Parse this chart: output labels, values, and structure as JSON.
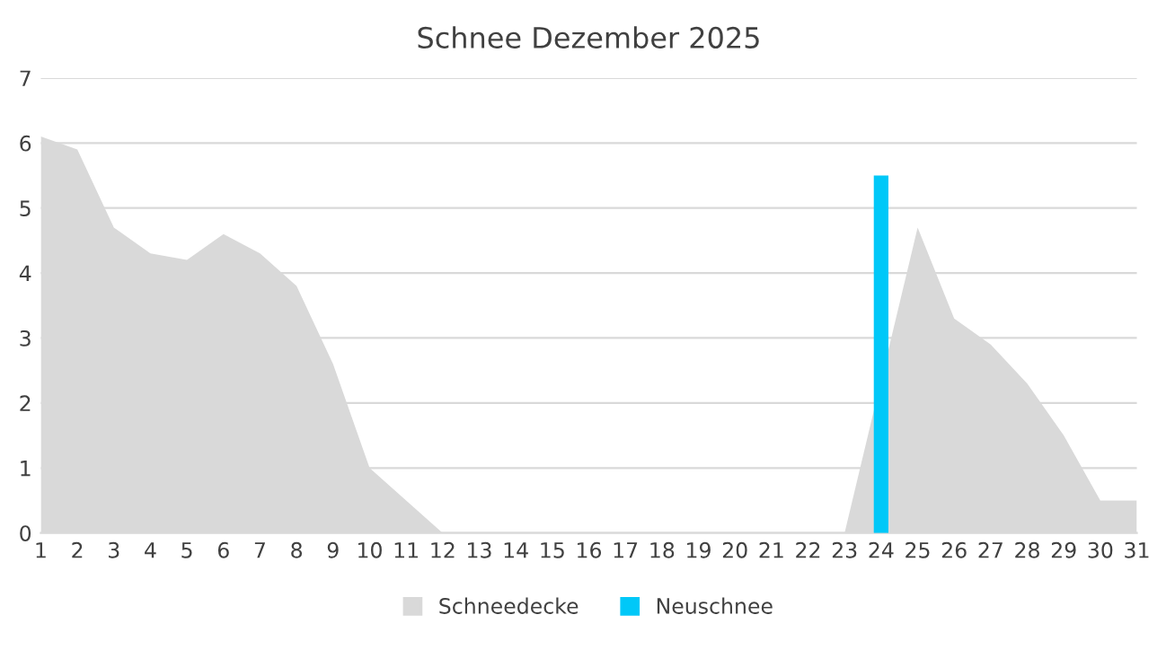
{
  "chart_data": {
    "type": "area",
    "title": "Schnee Dezember 2025",
    "categories": [
      "1",
      "2",
      "3",
      "4",
      "5",
      "6",
      "7",
      "8",
      "9",
      "10",
      "11",
      "12",
      "13",
      "14",
      "15",
      "16",
      "17",
      "18",
      "19",
      "20",
      "21",
      "22",
      "23",
      "24",
      "25",
      "26",
      "27",
      "28",
      "29",
      "30",
      "31"
    ],
    "series": [
      {
        "name": "Schneedecke",
        "color": "#d9d9d9",
        "values": [
          6.1,
          5.9,
          4.7,
          4.3,
          4.2,
          4.6,
          4.3,
          3.8,
          2.6,
          1.0,
          0.5,
          0,
          0,
          0,
          0,
          0,
          0,
          0,
          0,
          0,
          0,
          0,
          0,
          null,
          4.7,
          3.3,
          2.9,
          2.3,
          1.5,
          0.5,
          0.5
        ]
      },
      {
        "name": "Neuschnee",
        "type": "bar",
        "color": "#00c8f8",
        "values": [
          null,
          null,
          null,
          null,
          null,
          null,
          null,
          null,
          null,
          null,
          null,
          null,
          null,
          null,
          null,
          null,
          null,
          null,
          null,
          null,
          null,
          null,
          null,
          5.5,
          null,
          null,
          null,
          null,
          null,
          null,
          null
        ]
      }
    ],
    "ylim": [
      0,
      7
    ],
    "yticks": [
      0,
      1,
      2,
      3,
      4,
      5,
      6,
      7
    ],
    "grid": "y",
    "legend": "bottom"
  }
}
